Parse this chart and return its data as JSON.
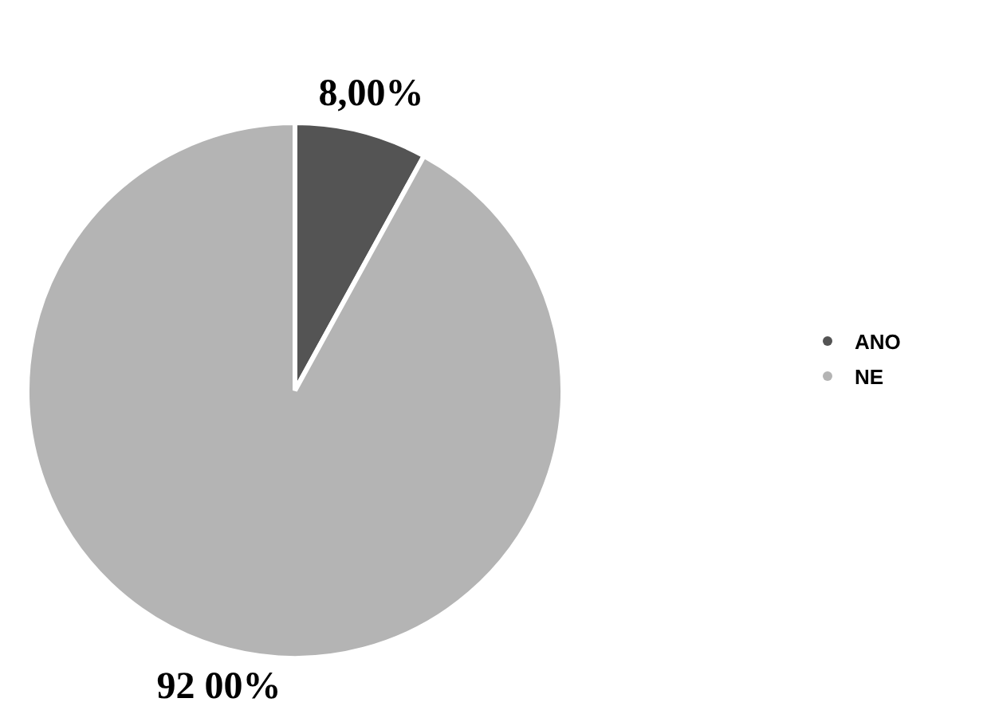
{
  "chart_data": {
    "type": "pie",
    "categories": [
      "ANO",
      "NE"
    ],
    "values": [
      8,
      92
    ],
    "colors": [
      "#545454",
      "#b4b4b4"
    ],
    "value_labels": [
      "8,00%",
      "92 00%"
    ],
    "legend": "right"
  }
}
